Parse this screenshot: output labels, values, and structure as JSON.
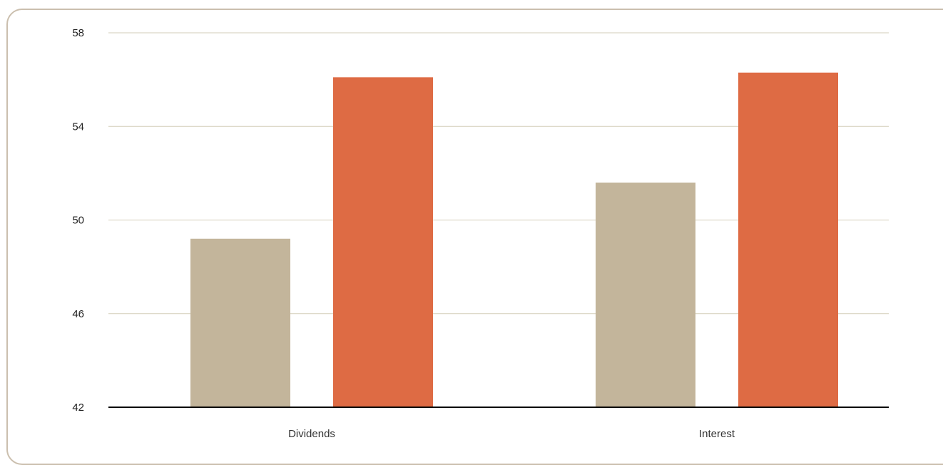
{
  "chart_data": {
    "type": "bar",
    "categories": [
      "Dividends",
      "Interest"
    ],
    "series": [
      {
        "values": [
          49.2,
          51.6
        ],
        "color": "#c3b59b"
      },
      {
        "values": [
          56.1,
          56.3
        ],
        "color": "#de6b44"
      }
    ],
    "yticks": [
      "58",
      "54",
      "50",
      "46",
      "42"
    ],
    "ylim": [
      42,
      58
    ],
    "grid": true,
    "legend": "none",
    "title": "",
    "xlabel": "",
    "ylabel": ""
  }
}
